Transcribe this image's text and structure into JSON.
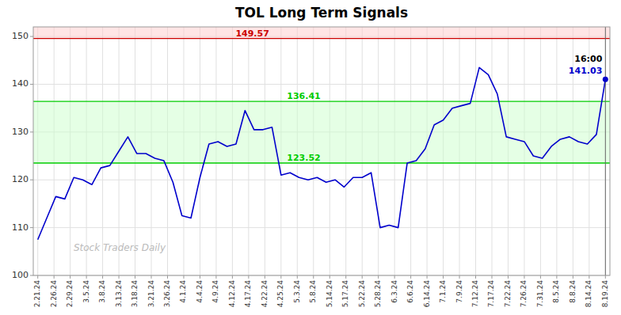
{
  "chart_data": {
    "type": "line",
    "title": "TOL Long Term Signals",
    "color": "#0000cc",
    "values": [
      107.5,
      112.0,
      116.5,
      116.0,
      120.5,
      120.0,
      119.0,
      122.5,
      123.0,
      126.0,
      129.0,
      125.5,
      125.5,
      124.5,
      124.0,
      119.5,
      112.5,
      112.0,
      120.5,
      127.5,
      128.0,
      127.0,
      127.5,
      134.5,
      130.5,
      130.5,
      131.0,
      121.0,
      121.5,
      120.5,
      120.0,
      120.5,
      119.5,
      120.0,
      118.5,
      120.5,
      120.5,
      121.5,
      110.0,
      110.5,
      110.0,
      123.5,
      124.0,
      126.5,
      131.5,
      132.5,
      135.0,
      135.5,
      136.0,
      143.5,
      142.0,
      138.0,
      129.0,
      128.5,
      128.0,
      125.0,
      124.5,
      127.0,
      128.5,
      129.0,
      128.0,
      127.5,
      129.5,
      141.03
    ],
    "xlim": [
      -0.5,
      63.5
    ],
    "xticks": [
      {
        "value": 0,
        "label": "2.21.24"
      },
      {
        "value": 1.8,
        "label": "2.26.24"
      },
      {
        "value": 3.6,
        "label": "2.29.24"
      },
      {
        "value": 5.4,
        "label": "3.5.24"
      },
      {
        "value": 7.2,
        "label": "3.8.24"
      },
      {
        "value": 9,
        "label": "3.13.24"
      },
      {
        "value": 10.8,
        "label": "3.18.24"
      },
      {
        "value": 12.6,
        "label": "3.21.24"
      },
      {
        "value": 14.4,
        "label": "3.26.24"
      },
      {
        "value": 16.2,
        "label": "4.1.24"
      },
      {
        "value": 18,
        "label": "4.4.24"
      },
      {
        "value": 19.8,
        "label": "4.9.24"
      },
      {
        "value": 21.6,
        "label": "4.12.24"
      },
      {
        "value": 23.4,
        "label": "4.17.24"
      },
      {
        "value": 25.2,
        "label": "4.22.24"
      },
      {
        "value": 27,
        "label": "4.25.24"
      },
      {
        "value": 28.8,
        "label": "5.3.24"
      },
      {
        "value": 30.6,
        "label": "5.8.24"
      },
      {
        "value": 32.4,
        "label": "5.14.24"
      },
      {
        "value": 34.2,
        "label": "5.17.24"
      },
      {
        "value": 36,
        "label": "5.22.24"
      },
      {
        "value": 37.8,
        "label": "5.28.24"
      },
      {
        "value": 39.6,
        "label": "6.3.24"
      },
      {
        "value": 41.4,
        "label": "6.6.24"
      },
      {
        "value": 43.2,
        "label": "6.14.24"
      },
      {
        "value": 45,
        "label": "7.1.24"
      },
      {
        "value": 46.8,
        "label": "7.9.24"
      },
      {
        "value": 48.6,
        "label": "7.12.24"
      },
      {
        "value": 50.4,
        "label": "7.17.24"
      },
      {
        "value": 52.2,
        "label": "7.22.24"
      },
      {
        "value": 54,
        "label": "7.26.24"
      },
      {
        "value": 55.8,
        "label": "7.31.24"
      },
      {
        "value": 57.6,
        "label": "8.5.24"
      },
      {
        "value": 59.4,
        "label": "8.8.24"
      },
      {
        "value": 61.2,
        "label": "8.14.24"
      },
      {
        "value": 63,
        "label": "8.19.24"
      }
    ],
    "ylim": [
      100,
      152
    ],
    "yticks": [
      100,
      110,
      120,
      130,
      140,
      150
    ],
    "grid": true,
    "reference_lines": [
      {
        "value": 149.57,
        "color": "#cc0000"
      },
      {
        "value": 136.41,
        "color": "#00cc00"
      },
      {
        "value": 123.52,
        "color": "#00cc00"
      }
    ],
    "zones": [
      {
        "from": 149.57,
        "to": 152,
        "color": "#ffcccc"
      },
      {
        "from": 123.52,
        "to": 136.41,
        "color": "#ccffcc"
      }
    ],
    "last_value": 141.03,
    "last_label": "16:00",
    "watermark": "Stock Traders Daily"
  }
}
